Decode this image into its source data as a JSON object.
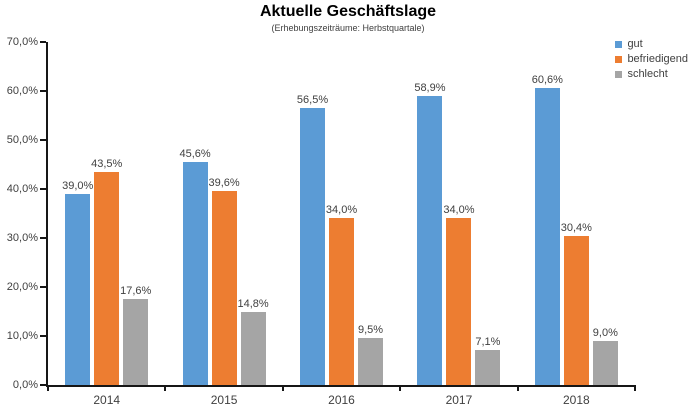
{
  "title": "Aktuelle Geschäftslage",
  "subtitle": "(Erhebungszeiträume: Herbstquartale)",
  "colors": {
    "gut": "#5B9BD5",
    "befriedigend": "#ED7D31",
    "schlecht": "#A5A5A5",
    "axis": "#161616",
    "text": "#404040"
  },
  "chart_data": {
    "type": "bar",
    "title": "Aktuelle Geschäftslage",
    "subtitle": "(Erhebungszeiträume: Herbstquartale)",
    "categories": [
      "2014",
      "2015",
      "2016",
      "2017",
      "2018"
    ],
    "series": [
      {
        "name": "gut",
        "color": "#5B9BD5",
        "values": [
          39.0,
          45.6,
          56.5,
          58.9,
          60.6
        ],
        "labels": [
          "39,0%",
          "45,6%",
          "56,5%",
          "58,9%",
          "60,6%"
        ]
      },
      {
        "name": "befriedigend",
        "color": "#ED7D31",
        "values": [
          43.5,
          39.6,
          34.0,
          34.0,
          30.4
        ],
        "labels": [
          "43,5%",
          "39,6%",
          "34,0%",
          "34,0%",
          "30,4%"
        ]
      },
      {
        "name": "schlecht",
        "color": "#A5A5A5",
        "values": [
          17.6,
          14.8,
          9.5,
          7.1,
          9.0
        ],
        "labels": [
          "17,6%",
          "14,8%",
          "9,5%",
          "7,1%",
          "9,0%"
        ]
      }
    ],
    "ylim": [
      0,
      70
    ],
    "yticks": [
      "70,0%",
      "60,0%",
      "50,0%",
      "40,0%",
      "30,0%",
      "20,0%",
      "10,0%",
      "0,0%"
    ],
    "xlabel": "",
    "ylabel": "",
    "grid": false,
    "legend_position": "top-right"
  }
}
